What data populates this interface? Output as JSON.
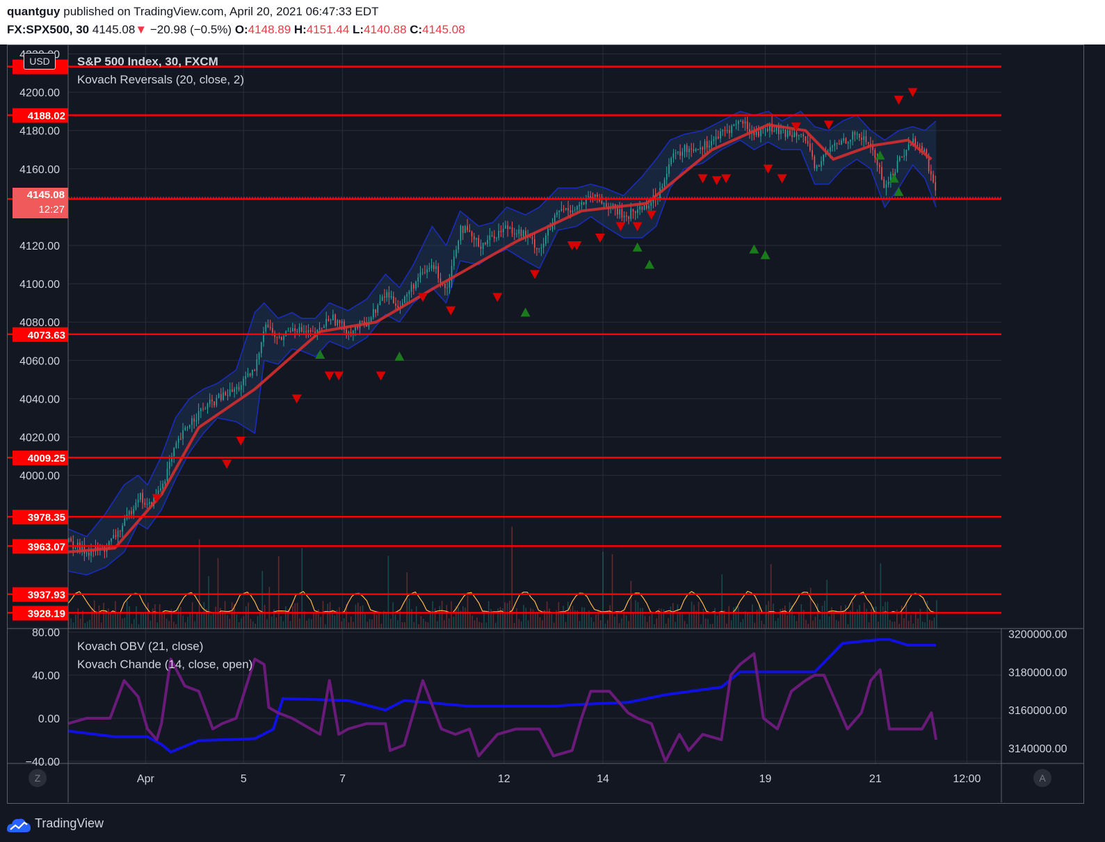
{
  "header": {
    "author": "quantguy",
    "published_text": "published on TradingView.com, April 20, 2021 06:47:33 EDT",
    "symbol": "FX:SPX500, 30",
    "last_price": "4145.08",
    "change_arrow": "▼",
    "change": "−20.98 (−0.5%)",
    "o_label": "O:",
    "o_value": "4148.89",
    "h_label": "H:",
    "h_value": "4151.44",
    "l_label": "L:",
    "l_value": "4140.88",
    "c_label": "C:",
    "c_value": "4145.08"
  },
  "legend": {
    "main_title": "S&P 500 Index, 30, FXCM",
    "indicator": "Kovach Reversals (20, close, 2)",
    "lower_1": "Kovach OBV (21, close)",
    "lower_2": "Kovach Chande (14, close, open)"
  },
  "currency_badge": "USD",
  "current_price_badge": {
    "price": "4145.08",
    "countdown": "12:27"
  },
  "buttons": {
    "left": "Z",
    "right": "A"
  },
  "footer": {
    "brand": "TradingView"
  },
  "colors": {
    "background": "#131722",
    "grid": "#2a2e39",
    "axis_text": "#d1d4dc",
    "level_line": "#ff0000",
    "up_candle": "#26a69a",
    "down_candle": "#ef5350",
    "mid_line": "#d32f2f",
    "band_edge": "#1a2dbf",
    "band_fill": "#1e3a5f",
    "sell_marker": "#d50000",
    "buy_marker": "#1b7a1b",
    "obv_line": "#1010e0",
    "chande_line": "#6a1b7a",
    "volume_osc": "#ffb74d"
  },
  "chart_data": [
    {
      "type": "candlestick",
      "title": "S&P 500 Index, 30, FXCM",
      "ylim": [
        3920,
        4222
      ],
      "y_ticks": [
        "4220.00",
        "4200.00",
        "4180.00",
        "4160.00",
        "4120.00",
        "4100.00",
        "4080.00",
        "4060.00",
        "4040.00",
        "4020.00",
        "4000.00"
      ],
      "x_ticks": [
        "Apr",
        "5",
        "7",
        "12",
        "14",
        "19",
        "21",
        "12:00"
      ],
      "horizontal_levels": [
        "4213.40",
        "4188.02",
        "4144.27",
        "4073.63",
        "4009.25",
        "3978.35",
        "3963.07",
        "3937.93",
        "3928.19"
      ],
      "horizontal_level_labels": [
        "4188.02",
        "4144.27",
        "4073.63",
        "4009.25",
        "3978.35",
        "3963.07",
        "3937.93",
        "3928.19"
      ],
      "current_price": 4145.08,
      "close_path": {
        "x": [
          0,
          0.02,
          0.04,
          0.06,
          0.075,
          0.085,
          0.1,
          0.115,
          0.13,
          0.145,
          0.16,
          0.18,
          0.2,
          0.21,
          0.225,
          0.24,
          0.25,
          0.265,
          0.28,
          0.3,
          0.32,
          0.34,
          0.355,
          0.37,
          0.39,
          0.405,
          0.42,
          0.44,
          0.455,
          0.47,
          0.49,
          0.505,
          0.525,
          0.545,
          0.56,
          0.575,
          0.595,
          0.615,
          0.63,
          0.645,
          0.66,
          0.68,
          0.7,
          0.72,
          0.735,
          0.75,
          0.765,
          0.785,
          0.8,
          0.815,
          0.83,
          0.845,
          0.86,
          0.875,
          0.89,
          0.905,
          0.918,
          0.93
        ],
        "y": [
          3965,
          3960,
          3962,
          3975,
          3990,
          3983,
          3995,
          4015,
          4028,
          4035,
          4040,
          4045,
          4055,
          4080,
          4070,
          4078,
          4075,
          4073,
          4083,
          4075,
          4080,
          4095,
          4088,
          4100,
          4110,
          4097,
          4130,
          4120,
          4125,
          4130,
          4125,
          4118,
          4138,
          4140,
          4145,
          4142,
          4135,
          4140,
          4145,
          4165,
          4170,
          4172,
          4178,
          4185,
          4178,
          4182,
          4178,
          4180,
          4160,
          4170,
          4175,
          4178,
          4172,
          4150,
          4165,
          4175,
          4168,
          4145
        ]
      },
      "band": {
        "upper": [
          3972,
          3968,
          3980,
          3995,
          4000,
          3995,
          4010,
          4030,
          4040,
          4045,
          4048,
          4055,
          4085,
          4090,
          4082,
          4085,
          4082,
          4082,
          4090,
          4086,
          4092,
          4105,
          4098,
          4110,
          4130,
          4120,
          4138,
          4130,
          4132,
          4140,
          4136,
          4140,
          4150,
          4150,
          4152,
          4150,
          4146,
          4156,
          4165,
          4175,
          4178,
          4180,
          4185,
          4190,
          4188,
          4190,
          4185,
          4190,
          4182,
          4180,
          4185,
          4188,
          4180,
          4175,
          4180,
          4182,
          4180,
          4185
        ],
        "lower": [
          3950,
          3948,
          3952,
          3960,
          3975,
          3972,
          3982,
          3998,
          4012,
          4022,
          4030,
          4028,
          4022,
          4060,
          4058,
          4066,
          4065,
          4062,
          4070,
          4066,
          4072,
          4084,
          4080,
          4090,
          4098,
          4090,
          4112,
          4110,
          4115,
          4118,
          4112,
          4108,
          4128,
          4130,
          4135,
          4130,
          4124,
          4124,
          4130,
          4150,
          4160,
          4163,
          4170,
          4175,
          4170,
          4174,
          4170,
          4170,
          4152,
          4152,
          4160,
          4165,
          4160,
          4140,
          4150,
          4162,
          4155,
          4140
        ]
      },
      "moving_average": {
        "x": [
          0,
          0.05,
          0.1,
          0.14,
          0.2,
          0.27,
          0.33,
          0.4,
          0.48,
          0.55,
          0.62,
          0.69,
          0.75,
          0.79,
          0.82,
          0.86,
          0.9,
          0.925
        ],
        "y": [
          3960,
          3962,
          3990,
          4025,
          4045,
          4075,
          4080,
          4100,
          4122,
          4138,
          4142,
          4170,
          4183,
          4180,
          4165,
          4172,
          4175,
          4165
        ]
      },
      "sell_markers": {
        "x": [
          0.095,
          0.17,
          0.185,
          0.245,
          0.28,
          0.29,
          0.335,
          0.38,
          0.41,
          0.46,
          0.5,
          0.54,
          0.545,
          0.57,
          0.592,
          0.61,
          0.625,
          0.68,
          0.695,
          0.705,
          0.75,
          0.765,
          0.78,
          0.815,
          0.89,
          0.905
        ],
        "y": [
          3988,
          4006,
          4018,
          4040,
          4052,
          4052,
          4052,
          4093,
          4086,
          4093,
          4105,
          4120,
          4120,
          4124,
          4130,
          4130,
          4136,
          4155,
          4154,
          4155,
          4160,
          4155,
          4182,
          4183,
          4196,
          4200
        ]
      },
      "buy_markers": {
        "x": [
          0.27,
          0.355,
          0.49,
          0.61,
          0.623,
          0.735,
          0.747,
          0.87,
          0.885,
          0.89
        ],
        "y": [
          4063,
          4062,
          4085,
          4119,
          4110,
          4118,
          4115,
          4167,
          4155,
          4148
        ]
      }
    },
    {
      "type": "line",
      "series_names": [
        "Kovach OBV (21, close)",
        "Kovach Chande (14, close, open)"
      ],
      "left_ylim": [
        -42,
        82
      ],
      "left_ticks": [
        "80.00",
        "40.00",
        "0.00",
        "−40.00"
      ],
      "right_ylim": [
        3132000,
        3202000
      ],
      "right_ticks": [
        "3200000.00",
        "3180000.00",
        "3160000.00",
        "3140000.00"
      ],
      "obv": {
        "x": [
          0,
          0.05,
          0.085,
          0.1,
          0.11,
          0.14,
          0.2,
          0.22,
          0.23,
          0.3,
          0.34,
          0.36,
          0.43,
          0.52,
          0.55,
          0.6,
          0.64,
          0.7,
          0.72,
          0.76,
          0.8,
          0.83,
          0.87,
          0.88,
          0.9,
          0.93
        ],
        "y": [
          3149000,
          3146000,
          3146000,
          3142000,
          3138000,
          3144000,
          3145000,
          3150000,
          3166000,
          3165000,
          3160000,
          3165000,
          3162000,
          3162000,
          3163000,
          3164000,
          3168000,
          3172000,
          3180000,
          3180000,
          3180000,
          3195000,
          3197000,
          3197000,
          3194000,
          3194000
        ]
      },
      "chande": {
        "x": [
          0,
          0.02,
          0.045,
          0.06,
          0.075,
          0.085,
          0.095,
          0.1,
          0.11,
          0.125,
          0.14,
          0.155,
          0.165,
          0.18,
          0.2,
          0.21,
          0.215,
          0.225,
          0.24,
          0.27,
          0.28,
          0.29,
          0.3,
          0.32,
          0.34,
          0.345,
          0.36,
          0.38,
          0.4,
          0.415,
          0.43,
          0.44,
          0.46,
          0.48,
          0.495,
          0.505,
          0.52,
          0.54,
          0.55,
          0.56,
          0.58,
          0.6,
          0.61,
          0.625,
          0.64,
          0.655,
          0.665,
          0.68,
          0.7,
          0.71,
          0.72,
          0.735,
          0.745,
          0.76,
          0.775,
          0.79,
          0.8,
          0.81,
          0.82,
          0.835,
          0.85,
          0.86,
          0.87,
          0.88,
          0.9,
          0.915,
          0.925,
          0.93
        ],
        "y": [
          -5,
          0,
          0,
          35,
          20,
          -10,
          -20,
          -5,
          55,
          30,
          25,
          -10,
          -5,
          0,
          55,
          50,
          10,
          5,
          0,
          -15,
          35,
          -15,
          -10,
          -5,
          -5,
          -30,
          -25,
          35,
          -10,
          -15,
          -10,
          -35,
          -15,
          -10,
          -10,
          -10,
          -35,
          -30,
          0,
          25,
          25,
          5,
          0,
          -5,
          -40,
          -15,
          -30,
          -15,
          -20,
          40,
          50,
          60,
          0,
          -10,
          25,
          35,
          40,
          40,
          20,
          -10,
          5,
          35,
          45,
          -10,
          -10,
          -10,
          5,
          -20
        ]
      }
    }
  ]
}
